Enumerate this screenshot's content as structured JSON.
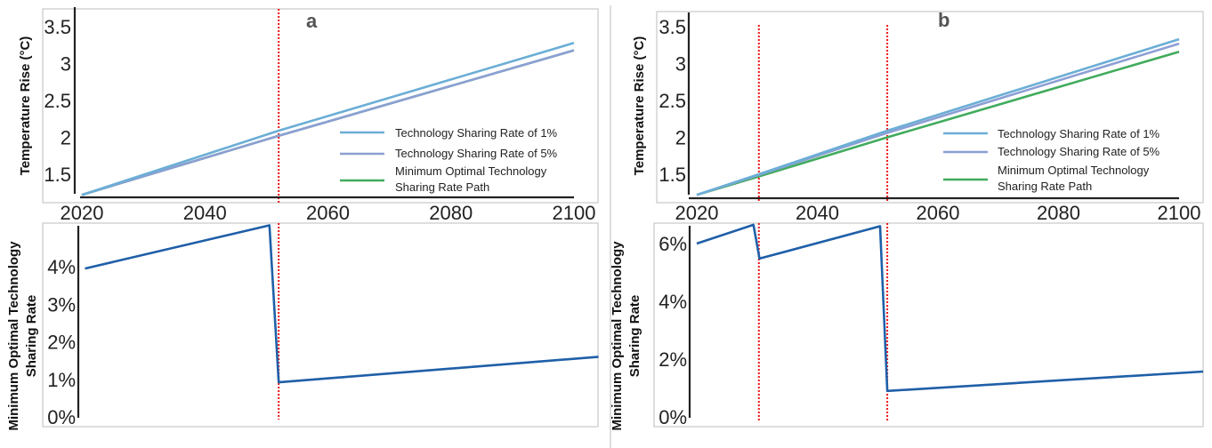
{
  "chart_data": [
    {
      "id": "a_top",
      "panel": "a",
      "type": "line",
      "title": "",
      "panel_label": "a",
      "xlabel": "",
      "ylabel": "Temperature Rise (°C)",
      "xlim": [
        2020,
        2100
      ],
      "ylim": [
        1.2,
        3.65
      ],
      "xticks": [
        "2020",
        "2040",
        "2060",
        "2080",
        "2100"
      ],
      "xtick_values": [
        2020,
        2040,
        2060,
        2080,
        2100
      ],
      "yticks": [
        "1.5",
        "2",
        "2.5",
        "3",
        "3.5"
      ],
      "ytick_values": [
        1.5,
        2,
        2.5,
        3,
        3.5
      ],
      "grid": false,
      "legend_position": "lower-right",
      "reference_lines_x": [
        2052
      ],
      "series": [
        {
          "name": "Technology Sharing Rate of 1%",
          "color": "#6baed6",
          "x": [
            2020,
            2052,
            2100
          ],
          "y": [
            1.22,
            2.09,
            3.28
          ]
        },
        {
          "name": "Technology Sharing Rate of 5%",
          "color": "#8c9fd4",
          "x": [
            2020,
            2052,
            2100
          ],
          "y": [
            1.22,
            2.02,
            3.18
          ]
        },
        {
          "name": "Minimum Optimal Technology Sharing Rate Path",
          "color": "#41ab5d",
          "x": [
            2020,
            2052,
            2100
          ],
          "y": [
            1.22,
            2.02,
            3.18
          ]
        }
      ]
    },
    {
      "id": "a_bottom",
      "panel": "a",
      "type": "line",
      "title": "",
      "xlabel": "",
      "ylabel": "Minimum Optimal Technology Sharing Rate",
      "xlim": [
        2020,
        2104
      ],
      "ylim": [
        0,
        5.1
      ],
      "yticks": [
        "0%",
        "1%",
        "2%",
        "3%",
        "4%"
      ],
      "ytick_values": [
        0,
        1,
        2,
        3,
        4
      ],
      "grid": false,
      "reference_lines_x": [
        2052
      ],
      "series": [
        {
          "name": "Minimum Optimal Technology Sharing Rate",
          "color": "#1f5fa8",
          "x": [
            2020.5,
            2050.5,
            2052,
            2104
          ],
          "y": [
            3.95,
            5.1,
            0.92,
            1.6
          ]
        }
      ]
    },
    {
      "id": "b_top",
      "panel": "b",
      "type": "line",
      "title": "",
      "panel_label": "b",
      "xlabel": "",
      "ylabel": "Temperature Rise (°C)",
      "xlim": [
        2020,
        2100
      ],
      "ylim": [
        1.2,
        3.65
      ],
      "xticks": [
        "2020",
        "2040",
        "2060",
        "2080",
        "2100"
      ],
      "xtick_values": [
        2020,
        2040,
        2060,
        2080,
        2100
      ],
      "yticks": [
        "1.5",
        "2",
        "2.5",
        "3",
        "3.5"
      ],
      "ytick_values": [
        1.5,
        2,
        2.5,
        3,
        3.5
      ],
      "grid": false,
      "legend_position": "lower-right",
      "reference_lines_x": [
        2030.3,
        2051.6
      ],
      "series": [
        {
          "name": "Technology Sharing Rate of 1%",
          "color": "#6baed6",
          "x": [
            2020,
            2030.3,
            2051.6,
            2100
          ],
          "y": [
            1.22,
            1.5,
            2.09,
            3.33
          ]
        },
        {
          "name": "Technology Sharing Rate of 5%",
          "color": "#8c9fd4",
          "x": [
            2020,
            2030.3,
            2051.6,
            2100
          ],
          "y": [
            1.22,
            1.49,
            2.06,
            3.27
          ]
        },
        {
          "name": "Minimum Optimal Technology Sharing Rate Path",
          "color": "#41ab5d",
          "x": [
            2020,
            2030.3,
            2051.6,
            2100
          ],
          "y": [
            1.22,
            1.47,
            2.0,
            3.16
          ]
        }
      ]
    },
    {
      "id": "b_bottom",
      "panel": "b",
      "type": "line",
      "title": "",
      "xlabel": "",
      "ylabel": "Minimum Optimal Technology Sharing Rate",
      "xlim": [
        2020,
        2104
      ],
      "ylim": [
        0,
        6.65
      ],
      "yticks": [
        "0%",
        "2%",
        "4%",
        "6%"
      ],
      "ytick_values": [
        0,
        2,
        4,
        6
      ],
      "grid": false,
      "reference_lines_x": [
        2030.3,
        2051.6
      ],
      "series": [
        {
          "name": "Minimum Optimal Technology Sharing Rate",
          "color": "#1f5fa8",
          "x": [
            2020,
            2029.4,
            2030.4,
            2050.4,
            2051.6,
            2104
          ],
          "y": [
            6.0,
            6.65,
            5.48,
            6.6,
            0.9,
            1.57
          ]
        }
      ]
    }
  ],
  "legend": {
    "entries": [
      {
        "label": "Technology Sharing Rate of 1%",
        "color": "#6baed6"
      },
      {
        "label": "Technology Sharing Rate of 5%",
        "color": "#8c9fd4"
      },
      {
        "label_line1": "Minimum Optimal Technology",
        "label_line2": "Sharing Rate Path",
        "color": "#41ab5d"
      }
    ]
  },
  "labels": {
    "top_ylabel": "Temperature Rise (°C)",
    "bottom_ylabel_line1": "Minimum Optimal Technology",
    "bottom_ylabel_line2": "Sharing Rate",
    "panel_a": "a",
    "panel_b": "b"
  },
  "colors": {
    "reference_line": "#ee1111",
    "bottom_series": "#1f5fa8"
  }
}
